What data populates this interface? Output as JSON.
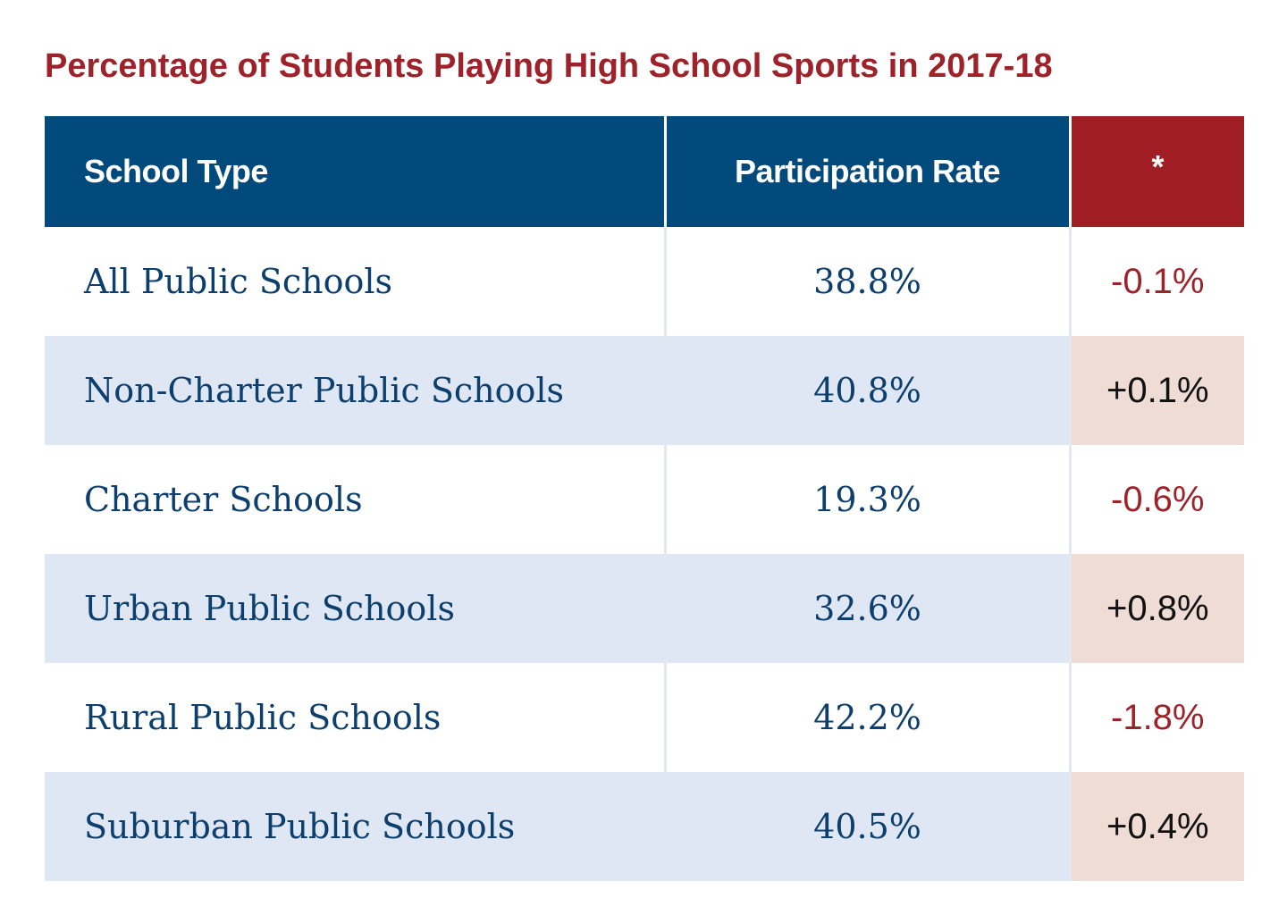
{
  "title": "Percentage of Students Playing High School Sports in 2017-18",
  "colors": {
    "title": "#9e2229",
    "header_blue": "#034a7c",
    "header_red": "#a11f24",
    "body_text": "#0d3f6e",
    "negative_text": "#9e2229",
    "positive_text": "#111111",
    "stripe_blue": "#dfe7f4",
    "stripe_pink": "#efdcd5"
  },
  "chart_data": {
    "type": "table",
    "title": "Percentage of Students Playing High School Sports in 2017-18",
    "columns": [
      "School Type",
      "Participation Rate",
      "*"
    ],
    "rows": [
      {
        "school_type": "All Public Schools",
        "participation_rate": "38.8%",
        "change": "-0.1%"
      },
      {
        "school_type": "Non-Charter Public Schools",
        "participation_rate": "40.8%",
        "change": "+0.1%"
      },
      {
        "school_type": "Charter Schools",
        "participation_rate": "19.3%",
        "change": "-0.6%"
      },
      {
        "school_type": "Urban Public Schools",
        "participation_rate": "32.6%",
        "change": "+0.8%"
      },
      {
        "school_type": "Rural Public Schools",
        "participation_rate": "42.2%",
        "change": "-1.8%"
      },
      {
        "school_type": "Suburban Public Schools",
        "participation_rate": "40.5%",
        "change": "+0.4%"
      }
    ]
  }
}
